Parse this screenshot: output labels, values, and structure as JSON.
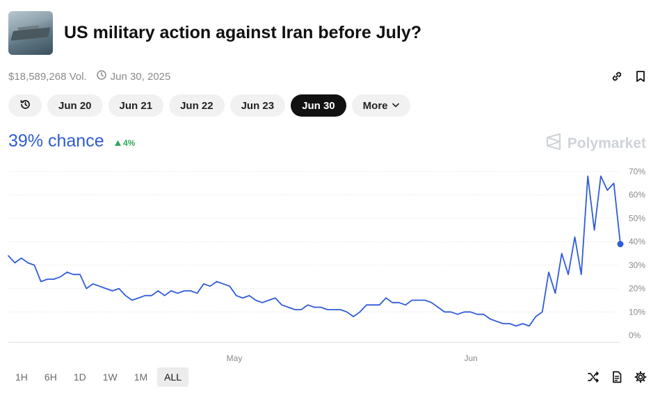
{
  "market": {
    "title": "US military action against Iran before July?",
    "volume": "$18,589,268 Vol.",
    "end_date": "Jun 30, 2025",
    "chance": "39% chance",
    "delta": "4%"
  },
  "brand": "Polymarket",
  "date_pills": [
    "Jun 20",
    "Jun 21",
    "Jun 22",
    "Jun 23",
    "Jun 30"
  ],
  "active_pill": "Jun 30",
  "more_label": "More",
  "time_ranges": [
    "1H",
    "6H",
    "1D",
    "1W",
    "1M",
    "ALL"
  ],
  "active_range": "ALL",
  "icons": {
    "history": "history-icon",
    "link": "link-icon",
    "bookmark": "bookmark-icon",
    "clock": "clock-icon",
    "shuffle": "shuffle-icon",
    "document": "document-icon",
    "settings": "gear-icon"
  },
  "colors": {
    "accent": "#2f5bd8",
    "positive": "#2fa65a",
    "line": "#2f5bd8"
  },
  "chart_data": {
    "type": "line",
    "title": "",
    "xlabel": "",
    "ylabel": "",
    "x_ticks": [
      "May",
      "Jun"
    ],
    "y_ticks": [
      "0%",
      "10%",
      "20%",
      "30%",
      "40%",
      "50%",
      "60%",
      "70%"
    ],
    "ylim": [
      0,
      70
    ],
    "grid": true,
    "series": [
      {
        "values": [
          34,
          31,
          33,
          31,
          30,
          23,
          24,
          24,
          25,
          27,
          26,
          26,
          20,
          22,
          21,
          20,
          19,
          20,
          17,
          15,
          16,
          17,
          17,
          19,
          17,
          19,
          18,
          19,
          19,
          18,
          22,
          21,
          23,
          22,
          21,
          17,
          16,
          17,
          15,
          14,
          15,
          16,
          13,
          12,
          11,
          11,
          13,
          12,
          12,
          11,
          11,
          11,
          10,
          8,
          10,
          13,
          13,
          13,
          16,
          14,
          14,
          13,
          15,
          15,
          15,
          14,
          12,
          10,
          10,
          9,
          10,
          10,
          9,
          9,
          7,
          6,
          5,
          5,
          4,
          5,
          4,
          8,
          10,
          27,
          18,
          35,
          26,
          42,
          26,
          68,
          45,
          68,
          62,
          65,
          39
        ]
      }
    ]
  }
}
